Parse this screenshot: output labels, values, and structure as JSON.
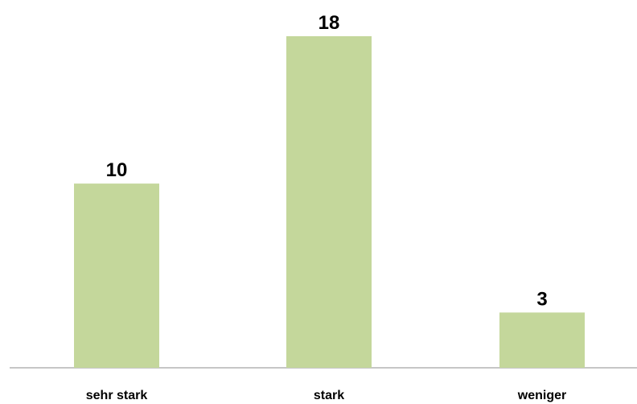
{
  "chart_data": {
    "type": "bar",
    "categories": [
      "sehr stark",
      "stark",
      "weniger"
    ],
    "values": [
      10,
      18,
      3
    ],
    "title": "",
    "xlabel": "",
    "ylabel": "",
    "ylim": [
      0,
      18
    ],
    "grid": false,
    "legend": "none",
    "colors": {
      "bar": "#c4d79b",
      "axis": "#8c8c8c",
      "text": "#000000"
    }
  }
}
